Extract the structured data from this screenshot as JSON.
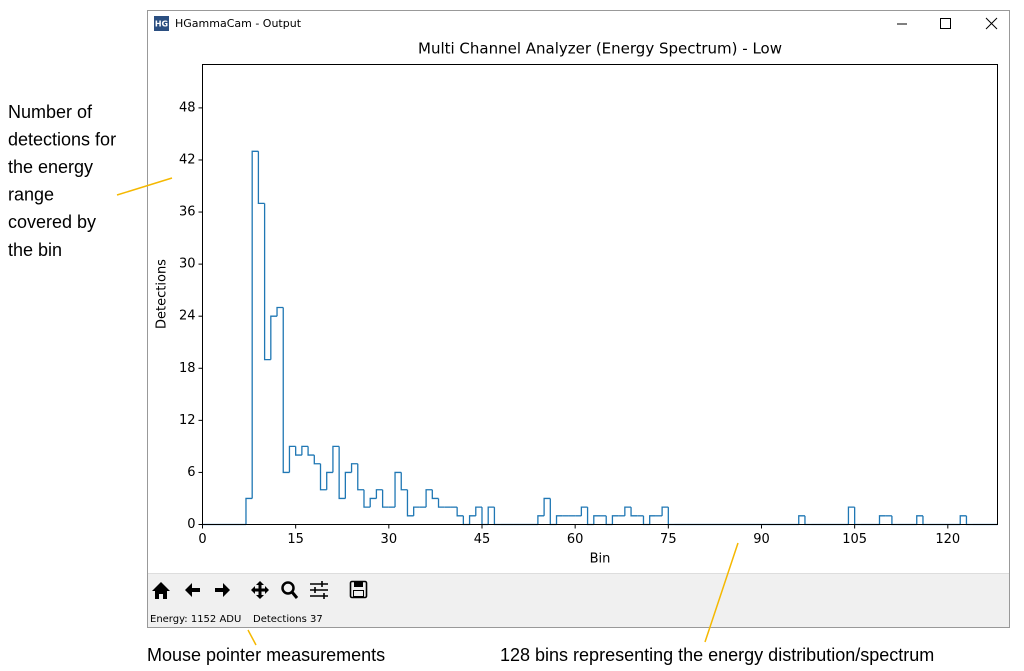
{
  "window": {
    "icon": "HG",
    "title": "HGammaCam - Output"
  },
  "status": {
    "energy": "Energy: 1152 ADU",
    "detections": "Detections 37"
  },
  "annotations": {
    "bin_height": [
      "Number of",
      "detections for",
      "the energy",
      "range",
      "covered by",
      "the bin"
    ],
    "mouse": "Mouse pointer measurements",
    "bins": "128 bins representing the energy distribution/spectrum"
  },
  "chart_data": {
    "type": "histogram",
    "title": "Multi Channel Analyzer (Energy Spectrum) - Low",
    "xlabel": "Bin",
    "ylabel": "Detections",
    "color": "#1f77b4",
    "bins": [
      0,
      1,
      2,
      3,
      4,
      5,
      6,
      7,
      8,
      9,
      10,
      11,
      12,
      13,
      14,
      15,
      16,
      17,
      18,
      19,
      20,
      21,
      22,
      23,
      24,
      25,
      26,
      27,
      28,
      29,
      30,
      31,
      32,
      33,
      34,
      35,
      36,
      37,
      38,
      39,
      40,
      41,
      42,
      43,
      44,
      45,
      46,
      47,
      48,
      49,
      50,
      51,
      52,
      53,
      54,
      55,
      56,
      57,
      58,
      59,
      60,
      61,
      62,
      63,
      64,
      65,
      66,
      67,
      68,
      69,
      70,
      71,
      72,
      73,
      74,
      75,
      76,
      77,
      78,
      79,
      80,
      81,
      82,
      83,
      84,
      85,
      86,
      87,
      88,
      89,
      90,
      91,
      92,
      93,
      94,
      95,
      96,
      97,
      98,
      99,
      100,
      101,
      102,
      103,
      104,
      105,
      106,
      107,
      108,
      109,
      110,
      111,
      112,
      113,
      114,
      115,
      116,
      117,
      118,
      119,
      120,
      121,
      122,
      123,
      124,
      125,
      126,
      127,
      128
    ],
    "values": [
      0,
      0,
      0,
      0,
      0,
      0,
      0,
      3,
      43,
      37,
      19,
      24,
      25,
      6,
      9,
      8,
      9,
      8,
      7,
      4,
      6,
      9,
      3,
      6,
      7,
      4,
      2,
      3,
      4,
      2,
      2,
      6,
      4,
      1,
      2,
      2,
      4,
      3,
      2,
      2,
      2,
      1,
      0,
      1,
      2,
      0,
      2,
      0,
      0,
      0,
      0,
      0,
      0,
      0,
      1,
      3,
      0,
      1,
      1,
      1,
      1,
      2,
      0,
      1,
      1,
      0,
      1,
      1,
      2,
      1,
      1,
      0,
      1,
      1,
      2,
      0,
      0,
      0,
      0,
      0,
      0,
      0,
      0,
      0,
      0,
      0,
      0,
      0,
      0,
      0,
      0,
      0,
      0,
      0,
      0,
      0,
      1,
      0,
      0,
      0,
      0,
      0,
      0,
      0,
      2,
      0,
      0,
      0,
      0,
      1,
      1,
      0,
      0,
      0,
      0,
      1,
      0,
      0,
      0,
      0,
      0,
      0,
      1,
      0,
      0,
      0,
      0,
      0
    ],
    "xlim": [
      0,
      128
    ],
    "ylim": [
      0,
      53
    ],
    "xticks": [
      0,
      15,
      30,
      45,
      60,
      75,
      90,
      105,
      120
    ],
    "yticks": [
      0,
      6,
      12,
      18,
      24,
      30,
      36,
      42,
      48
    ]
  }
}
